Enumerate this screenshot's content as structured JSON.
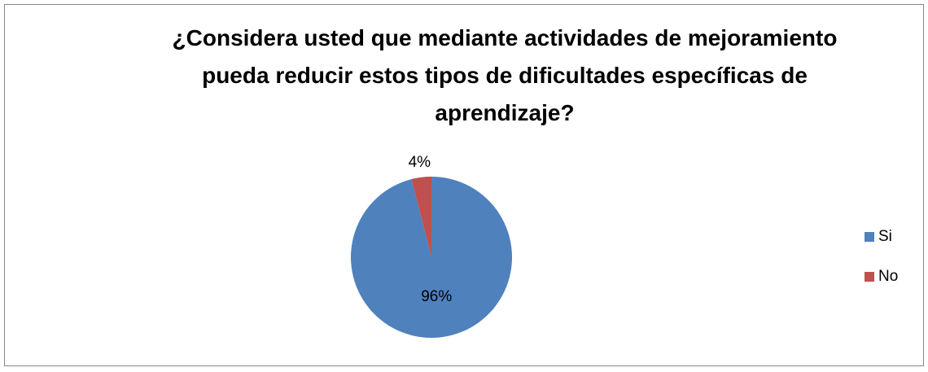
{
  "chart_data": {
    "type": "pie",
    "title": "¿Considera usted que mediante actividades de mejoramiento pueda reducir estos tipos de dificultades específicas de aprendizaje?",
    "categories": [
      "Si",
      "No"
    ],
    "values": [
      96,
      4
    ],
    "value_labels": [
      "96%",
      "4%"
    ],
    "colors": [
      "#4f81bd",
      "#c0504d"
    ],
    "legend": "right"
  }
}
